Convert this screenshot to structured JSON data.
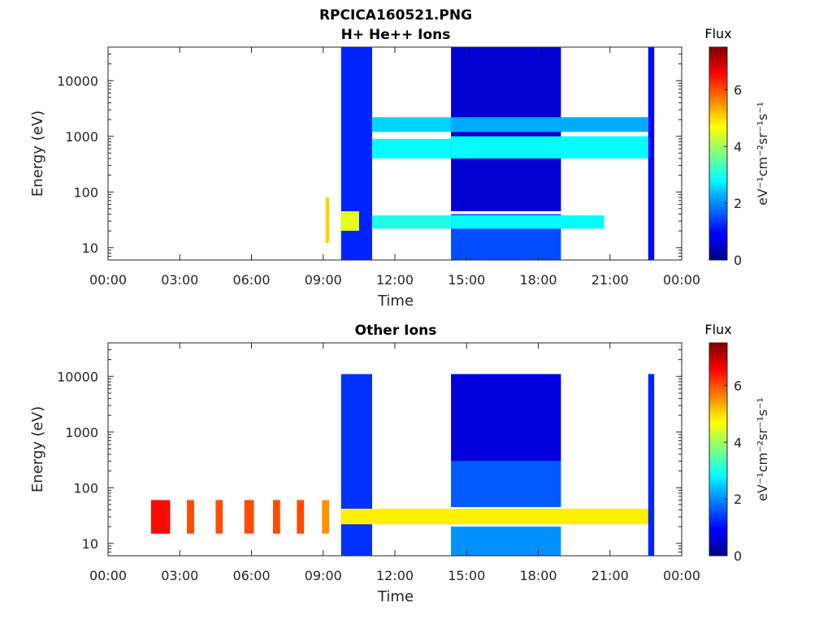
{
  "figure_title": "RPCICA160521.PNG",
  "chart_data": [
    {
      "type": "heatmap",
      "title": "H+ He++ Ions",
      "xlabel": "Time",
      "ylabel": "Energy (eV)",
      "x_ticks": [
        "00:00",
        "03:00",
        "06:00",
        "09:00",
        "12:00",
        "15:00",
        "18:00",
        "21:00",
        "00:00"
      ],
      "x_range_hours": [
        0,
        24
      ],
      "y_scale": "log",
      "y_ticks": [
        10,
        100,
        1000,
        10000
      ],
      "y_tick_labels": [
        "10",
        "100",
        "1000",
        "10000"
      ],
      "y_range": [
        6,
        40000
      ],
      "colorbar": {
        "title": "Flux",
        "label": "eV⁻¹cm⁻²sr⁻¹s⁻¹",
        "ticks": [
          0,
          2,
          4,
          6
        ],
        "range": [
          0,
          7.5
        ],
        "colormap": "jet"
      },
      "data_intervals_hours": [
        [
          9.1,
          9.25
        ],
        [
          9.75,
          10.5
        ],
        [
          10.65,
          10.75
        ],
        [
          10.85,
          11.05
        ],
        [
          14.35,
          18.95
        ],
        [
          19.4,
          19.55
        ],
        [
          19.7,
          20.75
        ],
        [
          22.6,
          22.85
        ]
      ],
      "bands": [
        {
          "t_start": 9.1,
          "t_end": 9.25,
          "e_low": 12,
          "e_high": 80,
          "flux": 5.0
        },
        {
          "t_start": 9.75,
          "t_end": 11.05,
          "e_low": 6,
          "e_high": 40000,
          "flux": 1.2
        },
        {
          "t_start": 9.75,
          "t_end": 10.5,
          "e_low": 20,
          "e_high": 45,
          "flux": 4.5
        },
        {
          "t_start": 11.05,
          "t_end": 14.35,
          "e_low": 22,
          "e_high": 38,
          "flux": 3.0
        },
        {
          "t_start": 11.05,
          "t_end": 14.35,
          "e_low": 1200,
          "e_high": 2200,
          "flux": 2.5
        },
        {
          "t_start": 11.05,
          "t_end": 14.35,
          "e_low": 400,
          "e_high": 900,
          "flux": 2.8
        },
        {
          "t_start": 14.35,
          "t_end": 18.95,
          "e_low": 6,
          "e_high": 40,
          "flux": 1.5
        },
        {
          "t_start": 14.35,
          "t_end": 18.95,
          "e_low": 45,
          "e_high": 40000,
          "flux": 0.6
        },
        {
          "t_start": 14.35,
          "t_end": 20.75,
          "e_low": 22,
          "e_high": 38,
          "flux": 2.8
        },
        {
          "t_start": 14.35,
          "t_end": 22.6,
          "e_low": 400,
          "e_high": 1000,
          "flux": 2.8
        },
        {
          "t_start": 14.35,
          "t_end": 22.6,
          "e_low": 1200,
          "e_high": 2200,
          "flux": 2.2
        },
        {
          "t_start": 22.6,
          "t_end": 22.85,
          "e_low": 6,
          "e_high": 40000,
          "flux": 1.0
        }
      ]
    },
    {
      "type": "heatmap",
      "title": "Other Ions",
      "xlabel": "Time",
      "ylabel": "Energy (eV)",
      "x_ticks": [
        "00:00",
        "03:00",
        "06:00",
        "09:00",
        "12:00",
        "15:00",
        "18:00",
        "21:00",
        "00:00"
      ],
      "x_range_hours": [
        0,
        24
      ],
      "y_scale": "log",
      "y_ticks": [
        10,
        100,
        1000,
        10000
      ],
      "y_tick_labels": [
        "10",
        "100",
        "1000",
        "10000"
      ],
      "y_range": [
        6,
        40000
      ],
      "colorbar": {
        "title": "Flux",
        "label": "eV⁻¹cm⁻²sr⁻¹s⁻¹",
        "ticks": [
          0,
          2,
          4,
          6
        ],
        "range": [
          0,
          7.5
        ],
        "colormap": "jet"
      },
      "data_intervals_hours": [
        [
          1.8,
          2.6
        ],
        [
          3.3,
          3.6
        ],
        [
          4.5,
          4.8
        ],
        [
          5.7,
          6.1
        ],
        [
          6.9,
          7.2
        ],
        [
          7.9,
          8.2
        ],
        [
          8.95,
          9.25
        ],
        [
          9.75,
          10.5
        ],
        [
          10.65,
          10.75
        ],
        [
          10.85,
          11.05
        ],
        [
          14.35,
          18.95
        ],
        [
          19.4,
          19.55
        ],
        [
          19.7,
          20.75
        ],
        [
          22.6,
          22.85
        ]
      ],
      "bands": [
        {
          "t_start": 1.8,
          "t_end": 2.6,
          "e_low": 15,
          "e_high": 60,
          "flux": 6.5
        },
        {
          "t_start": 3.3,
          "t_end": 3.6,
          "e_low": 15,
          "e_high": 60,
          "flux": 6.0
        },
        {
          "t_start": 4.5,
          "t_end": 4.8,
          "e_low": 15,
          "e_high": 60,
          "flux": 6.0
        },
        {
          "t_start": 5.7,
          "t_end": 6.1,
          "e_low": 15,
          "e_high": 60,
          "flux": 6.0
        },
        {
          "t_start": 6.9,
          "t_end": 7.2,
          "e_low": 15,
          "e_high": 60,
          "flux": 6.0
        },
        {
          "t_start": 7.9,
          "t_end": 8.2,
          "e_low": 15,
          "e_high": 60,
          "flux": 6.0
        },
        {
          "t_start": 8.95,
          "t_end": 9.25,
          "e_low": 15,
          "e_high": 60,
          "flux": 5.5
        },
        {
          "t_start": 9.75,
          "t_end": 11.05,
          "e_low": 6,
          "e_high": 11000,
          "flux": 1.3
        },
        {
          "t_start": 9.75,
          "t_end": 22.85,
          "e_low": 22,
          "e_high": 42,
          "flux": 4.8
        },
        {
          "t_start": 14.35,
          "t_end": 18.95,
          "e_low": 6,
          "e_high": 20,
          "flux": 2.0
        },
        {
          "t_start": 14.35,
          "t_end": 18.95,
          "e_low": 45,
          "e_high": 300,
          "flux": 1.6
        },
        {
          "t_start": 14.35,
          "t_end": 18.95,
          "e_low": 300,
          "e_high": 11000,
          "flux": 0.7
        },
        {
          "t_start": 22.6,
          "t_end": 22.85,
          "e_low": 6,
          "e_high": 11000,
          "flux": 1.2
        }
      ]
    }
  ]
}
